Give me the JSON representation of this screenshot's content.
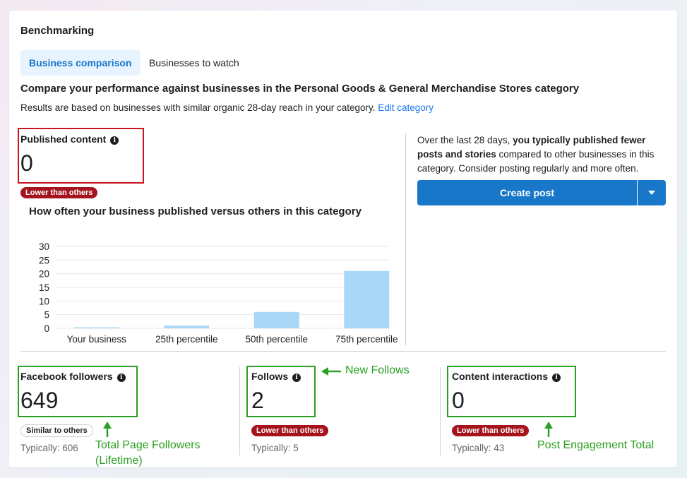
{
  "title": "Benchmarking",
  "tabs": [
    {
      "label": "Business comparison",
      "active": true
    },
    {
      "label": "Businesses to watch",
      "active": false
    }
  ],
  "headline": "Compare your performance against businesses in the Personal Goods & General Merchandise Stores category",
  "subtext": "Results are based on businesses with similar organic 28-day reach in your category.",
  "edit_category_link": "Edit category",
  "published": {
    "label": "Published content",
    "value": "0",
    "badge": "Lower than others"
  },
  "chart_title": "How often your business published versus others in this category",
  "chart_data": {
    "type": "bar",
    "categories": [
      "Your business",
      "25th percentile",
      "50th percentile",
      "75th percentile"
    ],
    "values": [
      0,
      1,
      6,
      21
    ],
    "ylim": [
      0,
      30
    ],
    "yticks": [
      "0",
      "5",
      "10",
      "15",
      "20",
      "25",
      "30"
    ],
    "grid": true,
    "bar_color": "#a8d8f5"
  },
  "recommendation": {
    "prefix": "Over the last 28 days, ",
    "bold": "you typically published fewer posts and stories",
    "suffix": " compared to other businesses in this category. Consider posting regularly and more often."
  },
  "create_post_label": "Create post",
  "metrics": [
    {
      "label": "Facebook followers",
      "value": "649",
      "badge": "Similar to others",
      "typically": "Typically: 606"
    },
    {
      "label": "Follows",
      "value": "2",
      "badge": "Lower than others",
      "typically": "Typically: 5"
    },
    {
      "label": "Content interactions",
      "value": "0",
      "badge": "Lower than others",
      "typically": "Typically: 43"
    }
  ],
  "annotations": {
    "new_follows": "New Follows",
    "total_page_followers_line1": "Total Page Followers",
    "total_page_followers_line2": "(Lifetime)",
    "post_engagement_total": "Post Engagement Total"
  },
  "colors": {
    "accent": "#1877c9",
    "lower_badge": "#a5141c",
    "annotation_green": "#2aa022",
    "highlight_red": "#c8141e"
  }
}
